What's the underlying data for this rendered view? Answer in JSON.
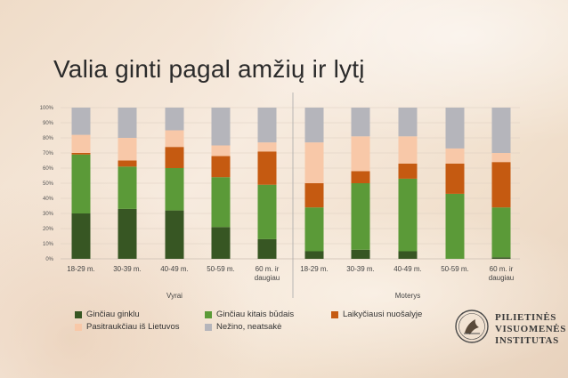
{
  "title": "Valia ginti pagal amžių ir lytį",
  "colors": {
    "ginciau_ginklu": "#375623",
    "ginciau_kitais": "#5b9a38",
    "laikyciausi": "#c55a11",
    "pasitrauk": "#f8c8a8",
    "nezino": "#b5b5bb"
  },
  "chart_data": {
    "type": "bar",
    "stacked": true,
    "ylim": [
      0,
      100
    ],
    "y_tick_labels": [
      "0%",
      "10%",
      "20%",
      "30%",
      "40%",
      "50%",
      "60%",
      "70%",
      "80%",
      "90%",
      "100%"
    ],
    "groups": [
      {
        "label": "Vyrai",
        "categories": [
          "18-29 m.",
          "30-39 m.",
          "40-49 m.",
          "50-59 m.",
          "60 m. ir daugiau"
        ]
      },
      {
        "label": "Moterys",
        "categories": [
          "18-29 m.",
          "30-39 m.",
          "40-49 m.",
          "50-59 m.",
          "60 m. ir daugiau"
        ]
      }
    ],
    "series": [
      {
        "name": "Ginčiau ginklu",
        "color_key": "ginciau_ginklu",
        "values": [
          30,
          33,
          32,
          21,
          13,
          5,
          6,
          5,
          0,
          1
        ]
      },
      {
        "name": "Ginčiau kitais būdais",
        "color_key": "ginciau_kitais",
        "values": [
          39,
          28,
          28,
          33,
          36,
          29,
          44,
          48,
          43,
          33
        ]
      },
      {
        "name": "Laikyčiausi nuošalyje",
        "color_key": "laikyciausi",
        "values": [
          1,
          4,
          14,
          14,
          22,
          16,
          8,
          10,
          20,
          30
        ]
      },
      {
        "name": "Pasitraukčiau iš Lietuvos",
        "color_key": "pasitrauk",
        "values": [
          12,
          15,
          11,
          7,
          6,
          27,
          23,
          18,
          10,
          6
        ]
      },
      {
        "name": "Nežino, neatsakė",
        "color_key": "nezino",
        "values": [
          18,
          20,
          15,
          25,
          23,
          23,
          19,
          19,
          27,
          30
        ]
      }
    ]
  },
  "logo": {
    "lines": [
      "PILIETINĖS",
      "VISUOMENĖS",
      "INSTITUTAS"
    ]
  }
}
